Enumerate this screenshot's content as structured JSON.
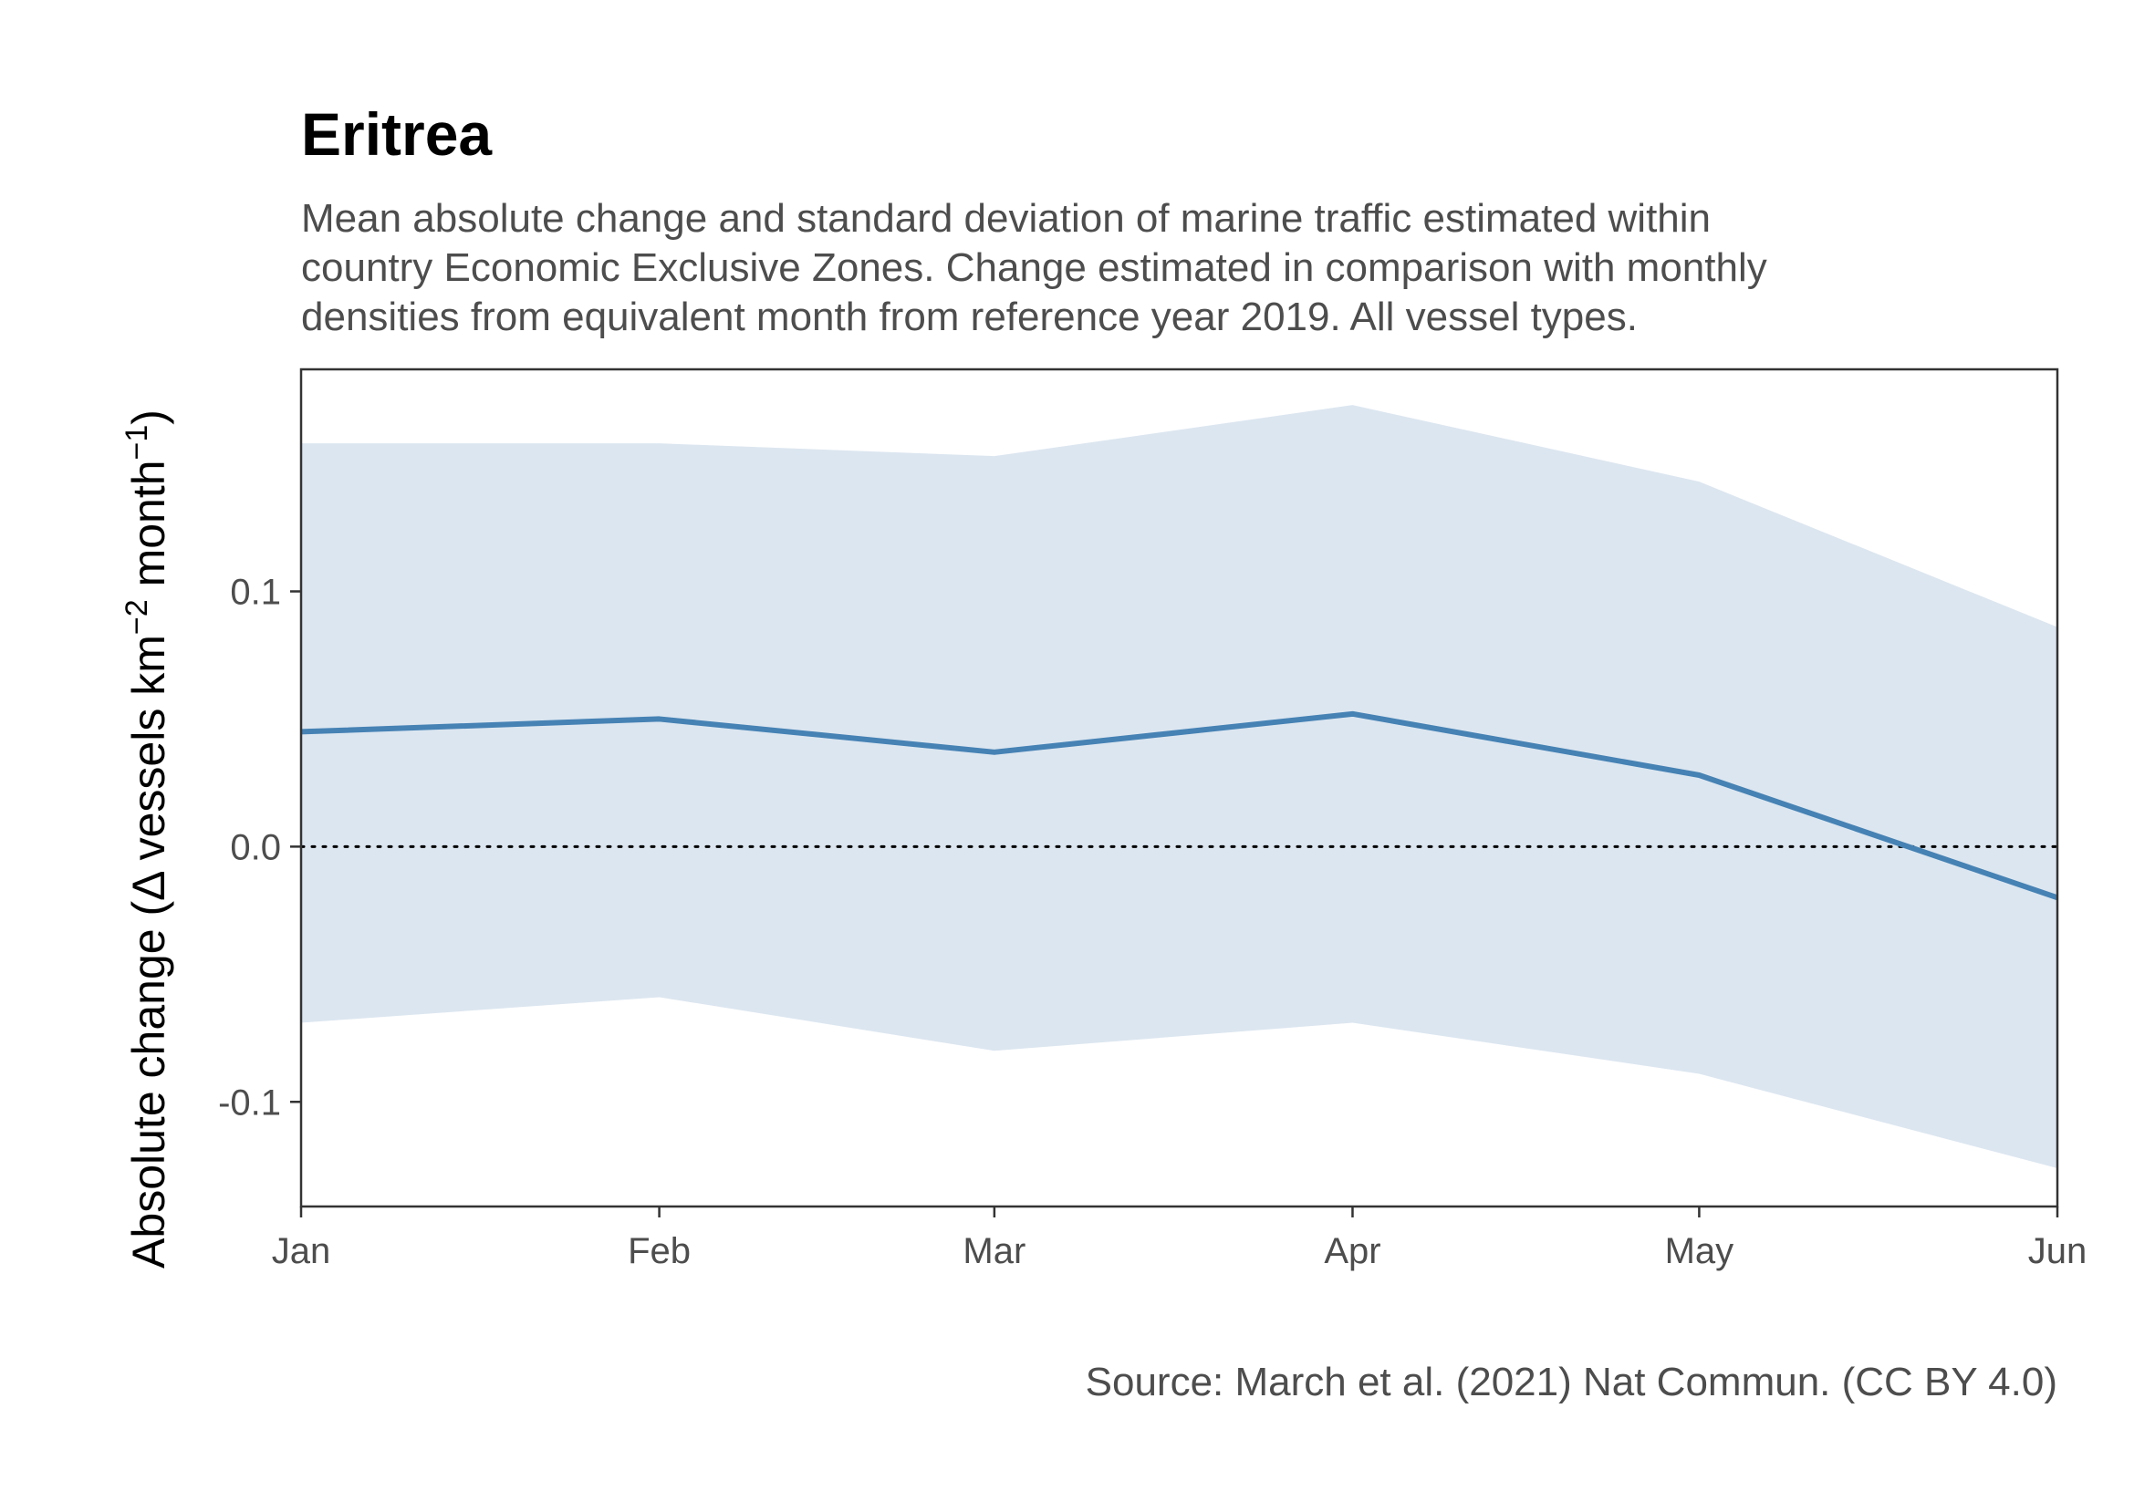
{
  "chart_data": {
    "type": "line",
    "title": "Eritrea",
    "subtitle_lines": [
      "Mean absolute change and standard deviation of marine traffic estimated within",
      "country Economic Exclusive Zones. Change estimated in comparison with monthly",
      "densities from equivalent month from reference year 2019. All vessel types."
    ],
    "caption": "Source: March et al. (2021) Nat Commun. (CC BY 4.0)",
    "ylabel_parts": {
      "prefix": "Absolute change (Δ vessels km",
      "sup1": "−2",
      "middle": " month",
      "sup2": "−1",
      "suffix": ")"
    },
    "categories": [
      "Jan",
      "Feb",
      "Mar",
      "Apr",
      "May",
      "Jun"
    ],
    "x_dates": [
      "2020-01-01",
      "2020-02-01",
      "2020-03-01",
      "2020-04-01",
      "2020-05-01",
      "2020-06-01"
    ],
    "series": [
      {
        "mean": [
          0.045,
          0.05,
          0.037,
          0.052,
          0.028,
          -0.02
        ],
        "sd_upper": [
          0.158,
          0.158,
          0.153,
          0.173,
          0.143,
          0.086
        ],
        "sd_lower": [
          -0.069,
          -0.059,
          -0.08,
          -0.069,
          -0.089,
          -0.126
        ]
      }
    ],
    "yticks": [
      -0.1,
      0.0,
      0.1
    ],
    "ytick_labels": [
      "-0.1",
      "0.0",
      "0.1"
    ],
    "ylim": [
      -0.141,
      0.187
    ],
    "reference_line": {
      "y": 0.0,
      "style": "dotted"
    },
    "colors": {
      "line": "#4682B4",
      "ribbon": "#dce6f0",
      "panel_border": "#333333"
    },
    "grid": false,
    "legend": "none"
  }
}
